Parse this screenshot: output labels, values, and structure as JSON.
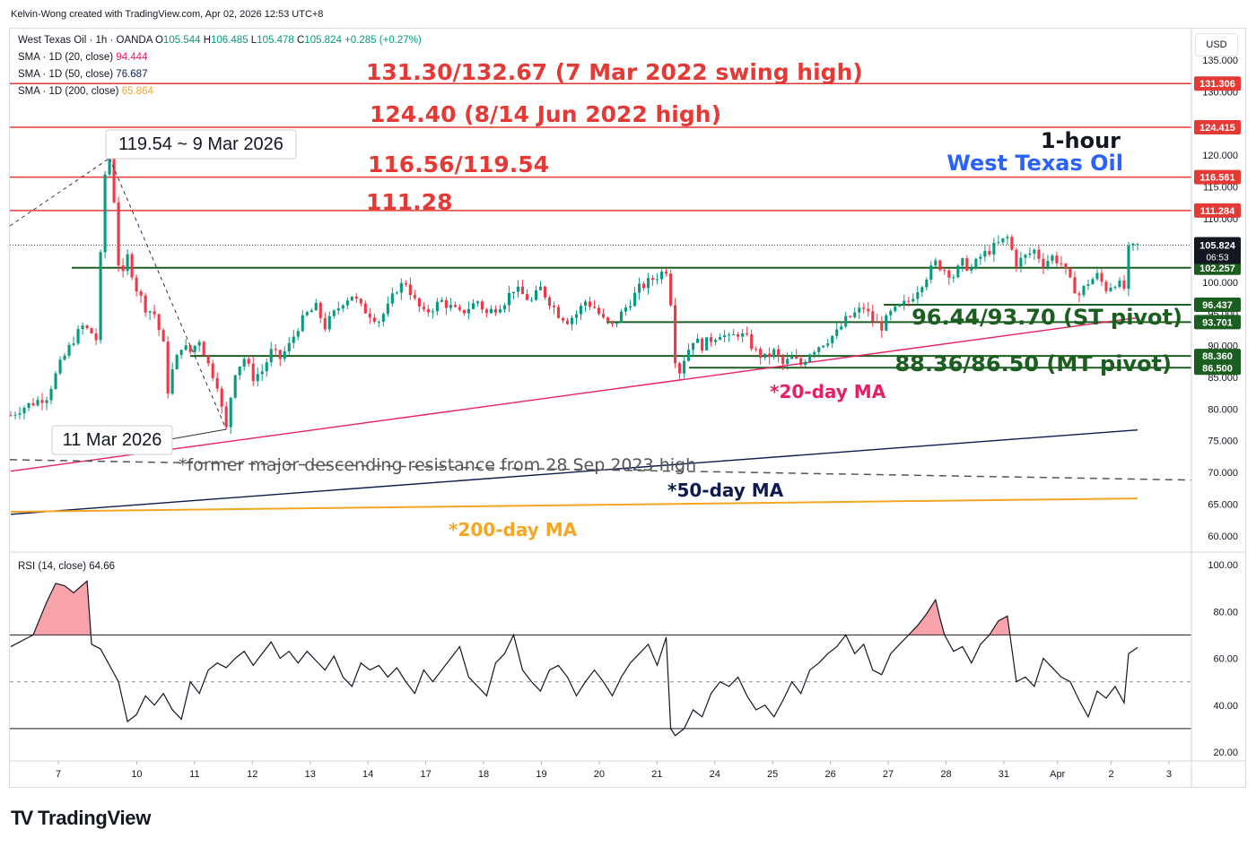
{
  "credit": "Kelvin-Wong created with TradingView.com, Apr 02, 2026 12:53 UTC+8",
  "logo_text": "TradingView",
  "currency_button": "USD",
  "legend": {
    "symbol": "West Texas Oil · 1h · OANDA",
    "o_label": "O",
    "o": "105.544",
    "h_label": "H",
    "h": "106.485",
    "l_label": "L",
    "l": "105.478",
    "c_label": "C",
    "c": "105.824",
    "change": "+0.285 (+0.27%)",
    "sma20_label": "SMA · 1D (20, close)",
    "sma20": "94.444",
    "sma50_label": "SMA · 1D (50, close)",
    "sma50": "76.687",
    "sma200_label": "SMA · 1D (200, close)",
    "sma200": "65.864",
    "rsi_label": "RSI (14, close)",
    "rsi": "64.66"
  },
  "colors": {
    "up": "#089981",
    "down": "#f23645",
    "resistance": "#e53935",
    "support": "#1b5e20",
    "sma20": "#e91e63",
    "sma50": "#0d1b4f",
    "sma200": "#f5a623",
    "title_blue": "#2962ff"
  },
  "annotations": {
    "title_top": "1-hour",
    "title_bottom": "West Texas Oil",
    "r1": "131.30/132.67 (7 Mar 2022 swing high)",
    "r2": "124.40 (8/14 Jun 2022 high)",
    "r3": "116.56/119.54",
    "r4": "111.28",
    "st_pivot": "96.44/93.70 (ST pivot)",
    "mt_pivot": "88.36/86.50 (MT pivot)",
    "high_call": "119.54 ~ 9 Mar 2026",
    "low_call": "11 Mar 2026",
    "descending": "*former major descending resistance from 28 Sep 2023 high",
    "ma20": "*20-day MA",
    "ma50": "*50-day MA",
    "ma200": "*200-day MA",
    "price_tag": "105.824",
    "countdown": "06:53"
  },
  "chart_data": [
    {
      "type": "candlestick",
      "title": "West Texas Oil · 1h · OANDA",
      "ylim": [
        58,
        136
      ],
      "y_ticks": [
        "60.000",
        "65.000",
        "70.000",
        "75.000",
        "80.000",
        "85.000",
        "90.000",
        "95.000",
        "100.000",
        "105.000",
        "110.000",
        "115.000",
        "120.000",
        "125.000",
        "130.000",
        "135.000"
      ],
      "x_ticks": [
        "7",
        "10",
        "11",
        "12",
        "13",
        "14",
        "17",
        "18",
        "19",
        "20",
        "21",
        "24",
        "25",
        "26",
        "27",
        "28",
        "31",
        "Apr",
        "2",
        "3"
      ],
      "price_path": [
        [
          0,
          79
        ],
        [
          2,
          80
        ],
        [
          5,
          81
        ],
        [
          8,
          82
        ],
        [
          11,
          87
        ],
        [
          14,
          91
        ],
        [
          16,
          93
        ],
        [
          18,
          92
        ],
        [
          19,
          91
        ],
        [
          20,
          104
        ],
        [
          21,
          117
        ],
        [
          22,
          119.5
        ],
        [
          23,
          113
        ],
        [
          24,
          103
        ],
        [
          25,
          101
        ],
        [
          26,
          104
        ],
        [
          28,
          99
        ],
        [
          30,
          96
        ],
        [
          32,
          95
        ],
        [
          34,
          90
        ],
        [
          35,
          83
        ],
        [
          36,
          86
        ],
        [
          38,
          90
        ],
        [
          40,
          89
        ],
        [
          42,
          91
        ],
        [
          44,
          87
        ],
        [
          46,
          84
        ],
        [
          47,
          80
        ],
        [
          48,
          76.8
        ],
        [
          49,
          82
        ],
        [
          50,
          86
        ],
        [
          52,
          88
        ],
        [
          54,
          85
        ],
        [
          56,
          86
        ],
        [
          58,
          89
        ],
        [
          60,
          88
        ],
        [
          62,
          90
        ],
        [
          64,
          93
        ],
        [
          66,
          95
        ],
        [
          68,
          96
        ],
        [
          70,
          93
        ],
        [
          72,
          95
        ],
        [
          74,
          97
        ],
        [
          76,
          98
        ],
        [
          78,
          96
        ],
        [
          80,
          95
        ],
        [
          82,
          94
        ],
        [
          84,
          96
        ],
        [
          86,
          99
        ],
        [
          88,
          100
        ],
        [
          90,
          97
        ],
        [
          92,
          95
        ],
        [
          94,
          96
        ],
        [
          96,
          97
        ],
        [
          98,
          96
        ],
        [
          100,
          95
        ],
        [
          102,
          96
        ],
        [
          104,
          97
        ],
        [
          106,
          95
        ],
        [
          108,
          96
        ],
        [
          110,
          97
        ],
        [
          112,
          99
        ],
        [
          114,
          98
        ],
        [
          116,
          97
        ],
        [
          118,
          99
        ],
        [
          120,
          97
        ],
        [
          122,
          95
        ],
        [
          124,
          94
        ],
        [
          126,
          95
        ],
        [
          128,
          97
        ],
        [
          130,
          96
        ],
        [
          132,
          94
        ],
        [
          134,
          93
        ],
        [
          136,
          95
        ],
        [
          138,
          97
        ],
        [
          140,
          99
        ],
        [
          142,
          100
        ],
        [
          144,
          101
        ],
        [
          146,
          102
        ],
        [
          147,
          97
        ],
        [
          148,
          88
        ],
        [
          149,
          86
        ],
        [
          150,
          88
        ],
        [
          152,
          91
        ],
        [
          154,
          90
        ],
        [
          156,
          91
        ],
        [
          158,
          92
        ],
        [
          160,
          91
        ],
        [
          162,
          92
        ],
        [
          164,
          91
        ],
        [
          166,
          89
        ],
        [
          168,
          88
        ],
        [
          170,
          89
        ],
        [
          172,
          87
        ],
        [
          174,
          88
        ],
        [
          176,
          87
        ],
        [
          178,
          89
        ],
        [
          180,
          90
        ],
        [
          182,
          91
        ],
        [
          184,
          92
        ],
        [
          186,
          94
        ],
        [
          188,
          95
        ],
        [
          190,
          96
        ],
        [
          192,
          94
        ],
        [
          194,
          93
        ],
        [
          196,
          95
        ],
        [
          198,
          96
        ],
        [
          200,
          97
        ],
        [
          202,
          99
        ],
        [
          204,
          101
        ],
        [
          206,
          103
        ],
        [
          208,
          102
        ],
        [
          210,
          101
        ],
        [
          212,
          103
        ],
        [
          214,
          102
        ],
        [
          216,
          104
        ],
        [
          218,
          105
        ],
        [
          220,
          106
        ],
        [
          222,
          107
        ],
        [
          224,
          103
        ],
        [
          226,
          104
        ],
        [
          228,
          105
        ],
        [
          230,
          103
        ],
        [
          232,
          104
        ],
        [
          234,
          103
        ],
        [
          236,
          100
        ],
        [
          238,
          98
        ],
        [
          240,
          100
        ],
        [
          242,
          101
        ],
        [
          244,
          99
        ],
        [
          246,
          100
        ],
        [
          248,
          99
        ],
        [
          249,
          105
        ],
        [
          251,
          105.8
        ]
      ],
      "total_bars": 252
    },
    {
      "type": "line",
      "title": "SMA",
      "ylim": [
        58,
        136
      ],
      "series": [
        {
          "name": "SMA · 1D (20, close)",
          "values": [
            [
              0,
              70.2
            ],
            [
              251,
              94.4
            ]
          ]
        },
        {
          "name": "SMA · 1D (50, close)",
          "values": [
            [
              0,
              63.4
            ],
            [
              251,
              76.7
            ]
          ]
        },
        {
          "name": "SMA · 1D (200, close)",
          "values": [
            [
              0,
              63.8
            ],
            [
              251,
              65.9
            ]
          ]
        }
      ]
    },
    {
      "type": "line",
      "title": "RSI (14, close)",
      "ylim": [
        20,
        100
      ],
      "y_ticks": [
        "20.00",
        "40.00",
        "60.00",
        "80.00",
        "100.00"
      ],
      "overbought": 70,
      "oversold": 30,
      "midline": 50,
      "values": [
        [
          0,
          65
        ],
        [
          5,
          70
        ],
        [
          8,
          84
        ],
        [
          10,
          92
        ],
        [
          12,
          91
        ],
        [
          14,
          88
        ],
        [
          17,
          93
        ],
        [
          18,
          66
        ],
        [
          20,
          64
        ],
        [
          24,
          50
        ],
        [
          26,
          33
        ],
        [
          28,
          36
        ],
        [
          30,
          44
        ],
        [
          32,
          40
        ],
        [
          34,
          45
        ],
        [
          36,
          38
        ],
        [
          38,
          34
        ],
        [
          40,
          50
        ],
        [
          42,
          45
        ],
        [
          44,
          55
        ],
        [
          46,
          58
        ],
        [
          48,
          56
        ],
        [
          50,
          60
        ],
        [
          52,
          63
        ],
        [
          54,
          57
        ],
        [
          56,
          62
        ],
        [
          58,
          67
        ],
        [
          60,
          60
        ],
        [
          62,
          63
        ],
        [
          64,
          58
        ],
        [
          66,
          63
        ],
        [
          68,
          59
        ],
        [
          70,
          55
        ],
        [
          72,
          61
        ],
        [
          74,
          52
        ],
        [
          76,
          48
        ],
        [
          78,
          58
        ],
        [
          80,
          55
        ],
        [
          82,
          57
        ],
        [
          84,
          52
        ],
        [
          86,
          56
        ],
        [
          88,
          50
        ],
        [
          90,
          45
        ],
        [
          92,
          55
        ],
        [
          94,
          50
        ],
        [
          96,
          55
        ],
        [
          98,
          60
        ],
        [
          100,
          65
        ],
        [
          102,
          52
        ],
        [
          104,
          48
        ],
        [
          106,
          44
        ],
        [
          108,
          58
        ],
        [
          110,
          62
        ],
        [
          112,
          70
        ],
        [
          114,
          55
        ],
        [
          116,
          50
        ],
        [
          118,
          46
        ],
        [
          120,
          55
        ],
        [
          122,
          57
        ],
        [
          124,
          52
        ],
        [
          126,
          44
        ],
        [
          128,
          50
        ],
        [
          130,
          55
        ],
        [
          132,
          50
        ],
        [
          134,
          44
        ],
        [
          136,
          52
        ],
        [
          138,
          58
        ],
        [
          140,
          62
        ],
        [
          142,
          66
        ],
        [
          144,
          57
        ],
        [
          146,
          69
        ],
        [
          147,
          30
        ],
        [
          148,
          27
        ],
        [
          150,
          30
        ],
        [
          152,
          38
        ],
        [
          154,
          35
        ],
        [
          156,
          45
        ],
        [
          158,
          50
        ],
        [
          160,
          48
        ],
        [
          162,
          52
        ],
        [
          164,
          44
        ],
        [
          166,
          38
        ],
        [
          168,
          40
        ],
        [
          170,
          35
        ],
        [
          172,
          42
        ],
        [
          174,
          50
        ],
        [
          176,
          45
        ],
        [
          178,
          55
        ],
        [
          180,
          58
        ],
        [
          182,
          62
        ],
        [
          184,
          65
        ],
        [
          186,
          70
        ],
        [
          188,
          62
        ],
        [
          190,
          66
        ],
        [
          192,
          55
        ],
        [
          194,
          53
        ],
        [
          196,
          62
        ],
        [
          198,
          66
        ],
        [
          200,
          70
        ],
        [
          202,
          74
        ],
        [
          204,
          79
        ],
        [
          206,
          85
        ],
        [
          207,
          77
        ],
        [
          208,
          70
        ],
        [
          210,
          63
        ],
        [
          212,
          65
        ],
        [
          214,
          58
        ],
        [
          216,
          66
        ],
        [
          218,
          70
        ],
        [
          220,
          76
        ],
        [
          222,
          78
        ],
        [
          224,
          50
        ],
        [
          226,
          52
        ],
        [
          228,
          48
        ],
        [
          230,
          60
        ],
        [
          232,
          56
        ],
        [
          234,
          52
        ],
        [
          236,
          50
        ],
        [
          238,
          42
        ],
        [
          240,
          35
        ],
        [
          242,
          46
        ],
        [
          244,
          43
        ],
        [
          246,
          48
        ],
        [
          248,
          41
        ],
        [
          249,
          62
        ],
        [
          251,
          64.66
        ]
      ]
    }
  ],
  "levels": [
    {
      "value": 131.306,
      "tag": "131.306",
      "kind": "resistance"
    },
    {
      "value": 124.415,
      "tag": "124.415",
      "kind": "resistance"
    },
    {
      "value": 116.561,
      "tag": "116.561",
      "kind": "resistance"
    },
    {
      "value": 111.284,
      "tag": "111.284",
      "kind": "resistance"
    },
    {
      "value": 102.257,
      "tag": "102.257",
      "kind": "support"
    },
    {
      "value": 96.437,
      "tag": "96.437",
      "kind": "support"
    },
    {
      "value": 93.701,
      "tag": "93.701",
      "kind": "support"
    },
    {
      "value": 88.36,
      "tag": "88.360",
      "kind": "support"
    },
    {
      "value": 86.5,
      "tag": "86.500",
      "kind": "support"
    }
  ]
}
